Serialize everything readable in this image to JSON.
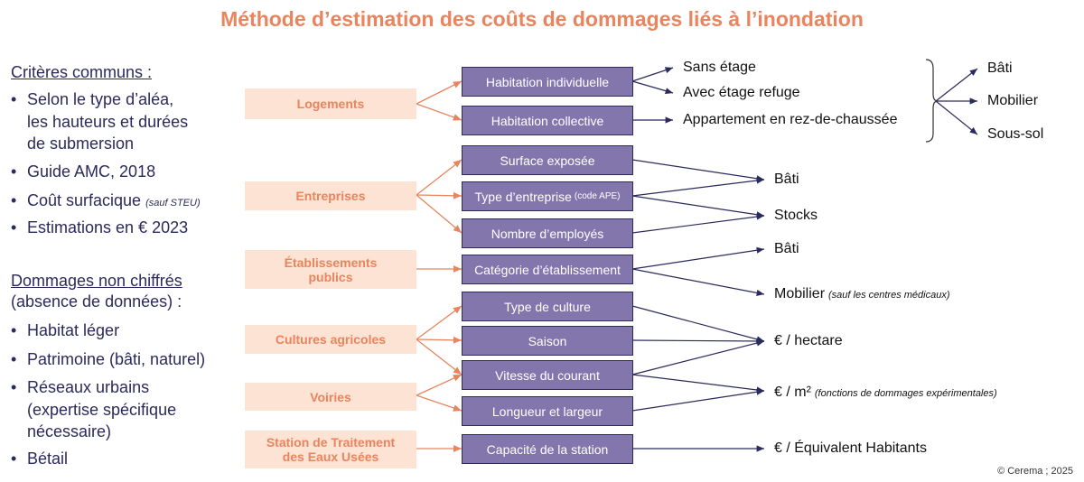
{
  "title": "Méthode d’estimation des coûts de dommages liés à l’inondation",
  "left": {
    "common_heading": "Critères communs  :",
    "common_items": [
      {
        "lines": [
          "Selon le type d’aléa,",
          "les hauteurs et durées",
          "de submersion"
        ]
      },
      {
        "lines": [
          "Guide AMC, 2018"
        ]
      },
      {
        "lines": [
          "Coût surfacique"
        ],
        "note": "(sauf STEU)"
      },
      {
        "lines": [
          "Estimations en € 2023"
        ]
      }
    ],
    "uncounted_heading": "Dommages  non chiffrés",
    "uncounted_subheading": "(absence de données) :",
    "uncounted_items": [
      {
        "lines": [
          "Habitat léger"
        ]
      },
      {
        "lines": [
          "Patrimoine (bâti, naturel)"
        ]
      },
      {
        "lines": [
          "Réseaux urbains",
          "(expertise spécifique",
          "nécessaire)"
        ]
      },
      {
        "lines": [
          "Bétail"
        ]
      }
    ],
    "bullet": "•"
  },
  "categories": [
    {
      "label": "Logements"
    },
    {
      "label": "Entreprises"
    },
    {
      "label": "Établissements publics"
    },
    {
      "label": "Cultures agricoles"
    },
    {
      "label": "Voiries"
    },
    {
      "label": "Station de Traitement des Eaux Usées"
    }
  ],
  "criteria": [
    {
      "label": "Habitation individuelle"
    },
    {
      "label": "Habitation collective"
    },
    {
      "label": "Surface exposée"
    },
    {
      "label": "Type d’entreprise",
      "note": "(code APE)"
    },
    {
      "label": "Nombre d’employés"
    },
    {
      "label": "Catégorie d’établissement"
    },
    {
      "label": "Type de culture"
    },
    {
      "label": "Saison"
    },
    {
      "label": "Vitesse du courant"
    },
    {
      "label": "Longueur  et largeur"
    },
    {
      "label": "Capacité de la station"
    }
  ],
  "outcomes": [
    {
      "label": "Sans étage"
    },
    {
      "label": "Avec étage refuge"
    },
    {
      "label": "Appartement en rez-de-chaussée"
    },
    {
      "label": "Bâti"
    },
    {
      "label": "Stocks"
    },
    {
      "label": "Bâti"
    },
    {
      "label": "Mobilier",
      "note": "(sauf les centres médicaux)"
    },
    {
      "label": "€ / hectare"
    },
    {
      "label": "€ / m²",
      "note": "(fonctions de dommages expérimentales)"
    },
    {
      "label": "€ / Équivalent Habitants"
    }
  ],
  "housing_components": [
    {
      "label": "Bâti"
    },
    {
      "label": "Mobilier"
    },
    {
      "label": "Sous-sol"
    }
  ],
  "credit": "© Cerema ; 2025",
  "colors": {
    "accent": "#e8845e",
    "category_fill": "#fde3d3",
    "criteria_fill": "#8376ac",
    "text_navy": "#2b2a5c"
  }
}
